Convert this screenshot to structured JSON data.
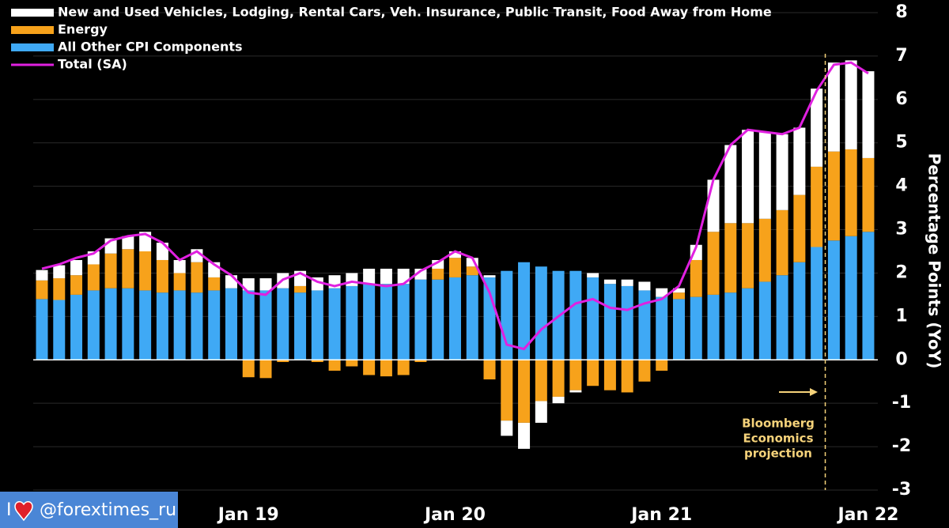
{
  "chart_data": {
    "type": "bar",
    "stacked": true,
    "categories": [
      null,
      null,
      null,
      null,
      null,
      null,
      null,
      null,
      null,
      null,
      null,
      null,
      "Jan 19",
      null,
      null,
      null,
      null,
      null,
      null,
      null,
      null,
      null,
      null,
      null,
      "Jan 20",
      null,
      null,
      null,
      null,
      null,
      null,
      null,
      null,
      null,
      null,
      null,
      "Jan 21",
      null,
      null,
      null,
      null,
      null,
      null,
      null,
      null,
      null,
      null,
      null,
      "Jan 22"
    ],
    "series": [
      {
        "name": "All Other CPI Components",
        "color": "#3fa9f5",
        "values": [
          1.4,
          1.38,
          1.5,
          1.6,
          1.65,
          1.65,
          1.6,
          1.55,
          1.6,
          1.55,
          1.6,
          1.65,
          1.6,
          1.6,
          1.65,
          1.55,
          1.6,
          1.65,
          1.7,
          1.75,
          1.75,
          1.75,
          1.85,
          1.85,
          1.9,
          1.95,
          1.9,
          2.05,
          2.25,
          2.15,
          2.05,
          2.05,
          1.9,
          1.75,
          1.7,
          1.6,
          1.45,
          1.4,
          1.45,
          1.5,
          1.55,
          1.65,
          1.8,
          1.95,
          2.25,
          2.6,
          2.75,
          2.85,
          2.95
        ]
      },
      {
        "name": "Energy",
        "color": "#f7a21b",
        "values": [
          0.43,
          0.5,
          0.45,
          0.6,
          0.8,
          0.9,
          0.9,
          0.75,
          0.4,
          0.7,
          0.3,
          0,
          -0.4,
          -0.42,
          -0.05,
          0.15,
          -0.05,
          -0.25,
          -0.15,
          -0.35,
          -0.38,
          -0.35,
          -0.05,
          0.25,
          0.45,
          0.2,
          -0.45,
          -1.4,
          -1.45,
          -0.95,
          -0.85,
          -0.7,
          -0.6,
          -0.7,
          -0.75,
          -0.5,
          -0.25,
          0.15,
          0.85,
          1.45,
          1.6,
          1.5,
          1.45,
          1.5,
          1.55,
          1.85,
          2.05,
          2.0,
          1.7
        ]
      },
      {
        "name": "New and Used Vehicles, Lodging, Rental Cars, Veh. Insurance, Public Transit, Food Away from Home",
        "color": "#ffffff",
        "values": [
          0.24,
          0.3,
          0.35,
          0.3,
          0.35,
          0.3,
          0.45,
          0.4,
          0.3,
          0.3,
          0.35,
          0.3,
          0.28,
          0.28,
          0.35,
          0.35,
          0.3,
          0.3,
          0.3,
          0.35,
          0.35,
          0.35,
          0.25,
          0.2,
          0.15,
          0.2,
          0.05,
          -0.35,
          -0.6,
          -0.5,
          -0.15,
          -0.05,
          0.1,
          0.1,
          0.15,
          0.2,
          0.2,
          0.1,
          0.35,
          1.2,
          1.8,
          2.15,
          2.0,
          1.75,
          1.55,
          1.8,
          2.05,
          2.05,
          2.0
        ]
      },
      {
        "name": "Total (SA)",
        "color": "#e020e0",
        "type": "line",
        "values": [
          2.1,
          2.2,
          2.35,
          2.45,
          2.75,
          2.85,
          2.9,
          2.7,
          2.3,
          2.5,
          2.2,
          1.95,
          1.55,
          1.5,
          1.85,
          2.0,
          1.8,
          1.7,
          1.8,
          1.75,
          1.7,
          1.75,
          2.05,
          2.25,
          2.5,
          2.35,
          1.55,
          0.35,
          0.25,
          0.7,
          1.0,
          1.3,
          1.4,
          1.2,
          1.15,
          1.3,
          1.4,
          1.7,
          2.6,
          4.15,
          4.95,
          5.3,
          5.25,
          5.2,
          5.35,
          6.2,
          6.8,
          6.85,
          6.6
        ]
      }
    ],
    "y_axis_label": "Percentage Points (YoY)",
    "ylim": [
      -3,
      8
    ],
    "yticks": [
      -3,
      -2,
      -1,
      0,
      1,
      2,
      3,
      4,
      5,
      6,
      7,
      8
    ],
    "grid": true,
    "annotation": [
      "Bloomberg",
      "Economics",
      "projection"
    ],
    "annotation_color": "#f5d27a",
    "watermark": [
      "I",
      "@forextimes_ru"
    ]
  }
}
